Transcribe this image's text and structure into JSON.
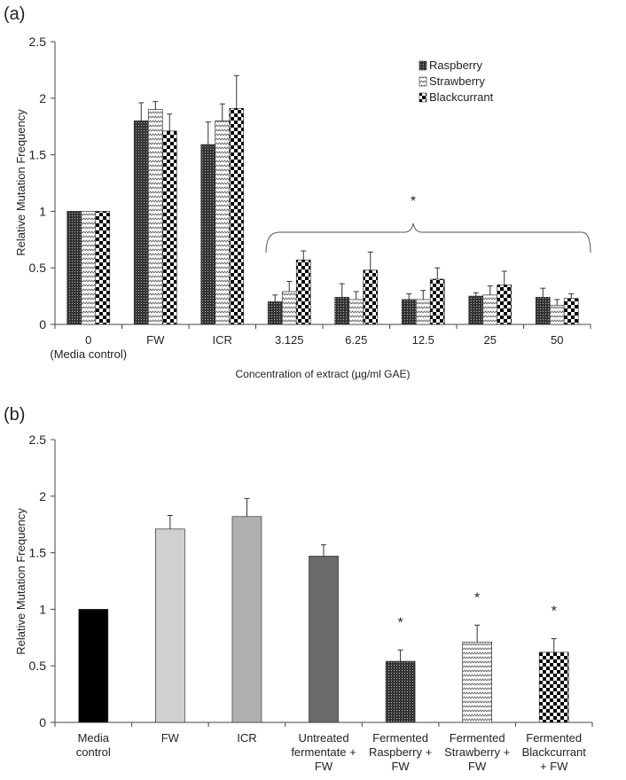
{
  "chart_data": [
    {
      "panel_label": "(a)",
      "type": "bar",
      "title": "",
      "xlabel": "Concentration of extract  (µg/ml GAE)",
      "ylabel": "Relative Mutation Frequency",
      "ylim": [
        0,
        2.5
      ],
      "yticks": [
        "0",
        "0.5",
        "1",
        "1.5",
        "2",
        "2.5"
      ],
      "categories": [
        [
          "0",
          "(Media control)"
        ],
        [
          "FW"
        ],
        [
          "ICR"
        ],
        [
          "3.125"
        ],
        [
          "6.25"
        ],
        [
          "12.5"
        ],
        [
          "25"
        ],
        [
          "50"
        ]
      ],
      "legend_position": "top-right",
      "series": [
        {
          "name": "Raspberry",
          "values": [
            1,
            1.8,
            1.59,
            0.2,
            0.24,
            0.22,
            0.25,
            0.24
          ],
          "errors": [
            0,
            0.16,
            0.2,
            0.06,
            0.12,
            0.05,
            0.03,
            0.08
          ]
        },
        {
          "name": "Strawberry",
          "values": [
            1,
            1.9,
            1.8,
            0.29,
            0.22,
            0.22,
            0.26,
            0.17
          ],
          "errors": [
            0,
            0.07,
            0.15,
            0.09,
            0.07,
            0.08,
            0.08,
            0.05
          ]
        },
        {
          "name": "Blackcurrant",
          "values": [
            1,
            1.71,
            1.91,
            0.57,
            0.48,
            0.4,
            0.35,
            0.23
          ],
          "errors": [
            0,
            0.15,
            0.29,
            0.08,
            0.16,
            0.1,
            0.12,
            0.04
          ]
        }
      ],
      "annotation": "*"
    },
    {
      "panel_label": "(b)",
      "type": "bar",
      "title": "",
      "xlabel": "",
      "ylabel": "Relative Mutation Frequency",
      "ylim": [
        0,
        2.5
      ],
      "yticks": [
        "0",
        "0.5",
        "1",
        "1.5",
        "2",
        "2.5"
      ],
      "categories": [
        [
          "Media",
          "control"
        ],
        [
          "FW"
        ],
        [
          "ICR"
        ],
        [
          "Untreated",
          "fermentate +",
          "FW"
        ],
        [
          "Fermented",
          "Raspberry +",
          "FW"
        ],
        [
          "Fermented",
          "Strawberry +",
          "FW"
        ],
        [
          "Fermented",
          "Blackcurrant",
          "+ FW"
        ]
      ],
      "values": [
        1,
        1.71,
        1.82,
        1.47,
        0.54,
        0.71,
        0.62
      ],
      "errors": [
        0,
        0.12,
        0.16,
        0.1,
        0.1,
        0.15,
        0.12
      ],
      "fills": [
        "#000000",
        "#d0d0d0",
        "#b0b0b0",
        "#6a6a6a",
        "dots",
        "zigzag",
        "checker"
      ],
      "significance": [
        "",
        "",
        "",
        "",
        "*",
        "*",
        "*"
      ]
    }
  ]
}
